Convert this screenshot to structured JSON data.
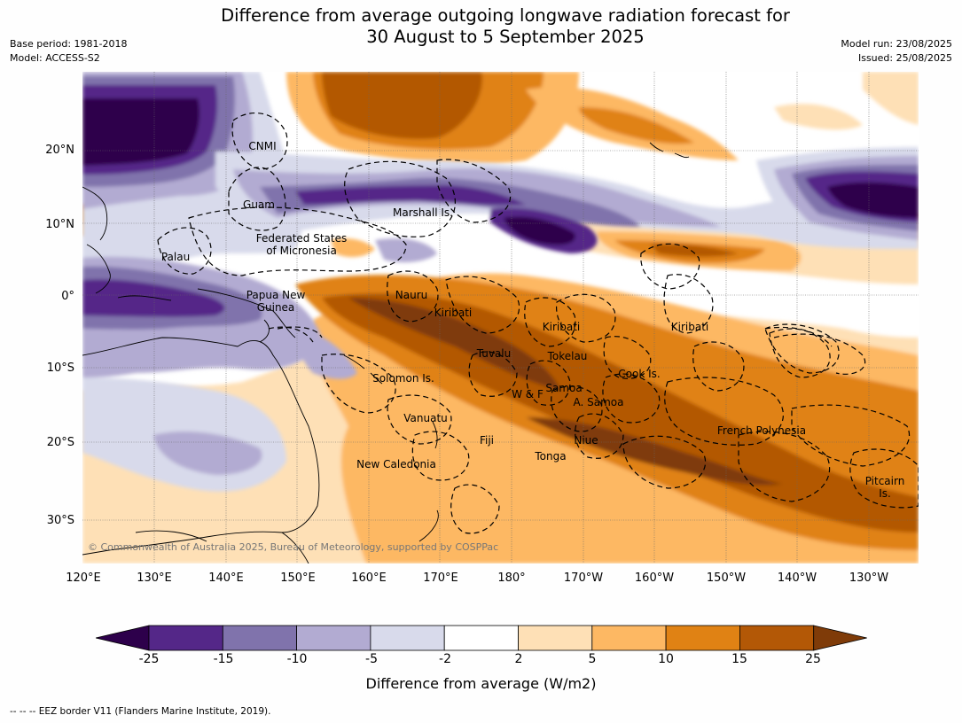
{
  "title_line1": "Difference from average outgoing longwave radiation forecast for",
  "title_line2": "30 August to 5 September 2025",
  "base_period": "Base period: 1981-2018",
  "model": "Model: ACCESS-S2",
  "model_run": "Model run: 23/08/2025",
  "issued": "Issued: 25/08/2025",
  "lat_labels": [
    "20°N",
    "10°N",
    "0°",
    "10°S",
    "20°S",
    "30°S"
  ],
  "lon_labels": [
    "120°E",
    "130°E",
    "140°E",
    "150°E",
    "160°E",
    "170°E",
    "180°",
    "170°W",
    "160°W",
    "150°W",
    "140°W",
    "130°W"
  ],
  "regions": {
    "cnmi": "CNMI",
    "guam": "Guam",
    "marshall": "Marshall Is.",
    "fsm_1": "Federated States",
    "fsm_2": "of Micronesia",
    "palau": "Palau",
    "png_1": "Papua New",
    "png_2": "Guinea",
    "nauru": "Nauru",
    "kiribati_w": "Kiribati",
    "kiribati_c": "Kiribati",
    "kiribati_e": "Kiribati",
    "tuvalu": "Tuvalu",
    "tokelau": "Tokelau",
    "cook": "Cook Is.",
    "solomon": "Solomon Is.",
    "wf": "W & F",
    "samoa": "Samoa",
    "asamoa": "A. Samoa",
    "vanuatu": "Vanuatu",
    "fiji": "Fiji",
    "niue": "Niue",
    "tonga": "Tonga",
    "french_polynesia": "French Polynesia",
    "pitcairn_1": "Pitcairn",
    "pitcairn_2": "Is.",
    "new_caledonia": "New Caledonia"
  },
  "copyright": "© Commonwealth of Australia 2025, Bureau of Meteorology, supported by COSPPac",
  "colorbar": {
    "ticks": [
      "-25",
      "-15",
      "-10",
      "-5",
      "-2",
      "2",
      "5",
      "10",
      "15",
      "25"
    ],
    "colors": [
      "#2d004b",
      "#542788",
      "#8073ac",
      "#b2abd2",
      "#d8daeb",
      "#ffffff",
      "#fee0b6",
      "#fdb863",
      "#e08214",
      "#b35806",
      "#7f3b08"
    ],
    "title": "Difference from average (W/m2)"
  },
  "footnote": "--  --  -- EEZ border V11 (Flanders Marine Institute, 2019)."
}
